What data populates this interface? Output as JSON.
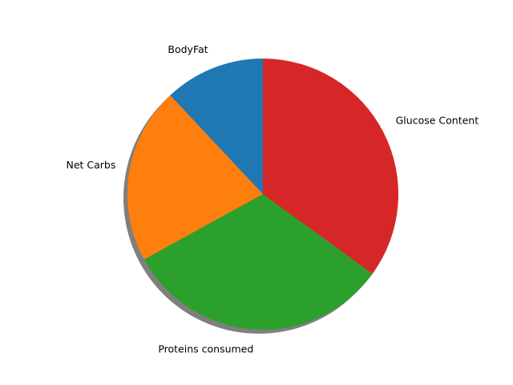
{
  "chart_data": {
    "type": "pie",
    "title": "",
    "categories": [
      "BodyFat",
      "Net Carbs",
      "Proteins consumed",
      "Glucose Content"
    ],
    "values": [
      12,
      21,
      32,
      35
    ],
    "colors": [
      "#1f77b4",
      "#ff7f0e",
      "#2ca02c",
      "#d62728"
    ],
    "start_angle": 90,
    "direction": "counterclockwise",
    "shadow": true
  }
}
